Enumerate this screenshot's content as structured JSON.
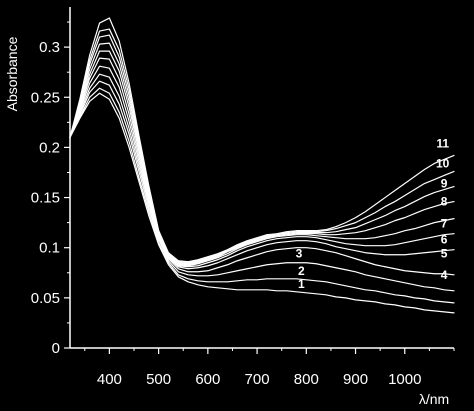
{
  "chart_data": {
    "type": "line",
    "title": "",
    "xlabel": "λ/nm",
    "ylabel": "Absorbance",
    "xlim": [
      320,
      1100
    ],
    "ylim": [
      0,
      0.34
    ],
    "x_ticks": [
      400,
      500,
      600,
      700,
      800,
      900,
      1000
    ],
    "x_tick_labels": [
      "400",
      "500",
      "600",
      "700",
      "800",
      "900",
      "1000"
    ],
    "y_ticks": [
      0,
      0.05,
      0.1,
      0.15,
      0.2,
      0.25,
      0.3
    ],
    "y_tick_labels": [
      "0",
      "0.05",
      "0.1",
      "0.15",
      "0.2",
      "0.25",
      "0.3"
    ],
    "grid": false,
    "legend": "none",
    "colors": {
      "background": "#000000",
      "axes": "#ffffff",
      "lines": "#ffffff"
    },
    "x": [
      320,
      340,
      360,
      380,
      400,
      420,
      440,
      460,
      480,
      500,
      520,
      540,
      560,
      580,
      600,
      620,
      640,
      660,
      680,
      700,
      720,
      740,
      760,
      780,
      800,
      820,
      840,
      860,
      880,
      900,
      920,
      940,
      960,
      980,
      1000,
      1020,
      1040,
      1060,
      1080,
      1100
    ],
    "series": [
      {
        "name": "1",
        "values": [
          0.21,
          0.229,
          0.246,
          0.254,
          0.248,
          0.229,
          0.2,
          0.166,
          0.132,
          0.103,
          0.083,
          0.071,
          0.066,
          0.063,
          0.061,
          0.06,
          0.059,
          0.058,
          0.058,
          0.058,
          0.058,
          0.057,
          0.057,
          0.056,
          0.055,
          0.054,
          0.053,
          0.051,
          0.05,
          0.048,
          0.047,
          0.046,
          0.044,
          0.043,
          0.041,
          0.04,
          0.038,
          0.037,
          0.036,
          0.035
        ],
        "label_x": 790,
        "label_y": 0.06
      },
      {
        "name": "2",
        "values": [
          0.21,
          0.23,
          0.25,
          0.259,
          0.254,
          0.235,
          0.206,
          0.17,
          0.136,
          0.105,
          0.085,
          0.073,
          0.069,
          0.067,
          0.066,
          0.066,
          0.066,
          0.067,
          0.068,
          0.068,
          0.069,
          0.069,
          0.069,
          0.069,
          0.068,
          0.067,
          0.066,
          0.064,
          0.062,
          0.06,
          0.058,
          0.057,
          0.055,
          0.053,
          0.052,
          0.05,
          0.049,
          0.047,
          0.046,
          0.045
        ],
        "label_x": 790,
        "label_y": 0.073
      },
      {
        "name": "3",
        "values": [
          0.21,
          0.232,
          0.255,
          0.266,
          0.262,
          0.243,
          0.213,
          0.176,
          0.14,
          0.108,
          0.087,
          0.076,
          0.073,
          0.072,
          0.072,
          0.073,
          0.075,
          0.077,
          0.079,
          0.081,
          0.083,
          0.084,
          0.085,
          0.085,
          0.085,
          0.084,
          0.082,
          0.08,
          0.078,
          0.076,
          0.073,
          0.071,
          0.069,
          0.067,
          0.065,
          0.063,
          0.061,
          0.06,
          0.058,
          0.057
        ],
        "label_x": 785,
        "label_y": 0.09
      },
      {
        "name": "4",
        "values": [
          0.21,
          0.234,
          0.259,
          0.273,
          0.27,
          0.251,
          0.219,
          0.181,
          0.144,
          0.11,
          0.089,
          0.079,
          0.076,
          0.076,
          0.077,
          0.08,
          0.083,
          0.087,
          0.09,
          0.093,
          0.096,
          0.098,
          0.099,
          0.1,
          0.1,
          0.099,
          0.097,
          0.095,
          0.092,
          0.089,
          0.086,
          0.083,
          0.081,
          0.079,
          0.077,
          0.076,
          0.075,
          0.074,
          0.074,
          0.073
        ],
        "label_x": 1080,
        "label_y": 0.069
      },
      {
        "name": "5",
        "values": [
          0.21,
          0.236,
          0.264,
          0.281,
          0.279,
          0.26,
          0.226,
          0.186,
          0.147,
          0.112,
          0.09,
          0.081,
          0.079,
          0.08,
          0.082,
          0.085,
          0.089,
          0.093,
          0.097,
          0.1,
          0.103,
          0.105,
          0.106,
          0.107,
          0.107,
          0.106,
          0.104,
          0.101,
          0.099,
          0.097,
          0.095,
          0.094,
          0.093,
          0.093,
          0.093,
          0.094,
          0.095,
          0.096,
          0.097,
          0.098
        ],
        "label_x": 1080,
        "label_y": 0.09
      },
      {
        "name": "6",
        "values": [
          0.21,
          0.238,
          0.269,
          0.289,
          0.288,
          0.268,
          0.233,
          0.191,
          0.15,
          0.113,
          0.091,
          0.082,
          0.081,
          0.082,
          0.085,
          0.088,
          0.092,
          0.097,
          0.101,
          0.104,
          0.107,
          0.109,
          0.11,
          0.111,
          0.111,
          0.11,
          0.108,
          0.106,
          0.104,
          0.103,
          0.102,
          0.102,
          0.102,
          0.103,
          0.105,
          0.107,
          0.109,
          0.111,
          0.113,
          0.114
        ],
        "label_x": 1080,
        "label_y": 0.104
      },
      {
        "name": "7",
        "values": [
          0.21,
          0.24,
          0.273,
          0.296,
          0.296,
          0.276,
          0.24,
          0.196,
          0.153,
          0.114,
          0.092,
          0.083,
          0.082,
          0.084,
          0.087,
          0.09,
          0.094,
          0.099,
          0.103,
          0.106,
          0.109,
          0.111,
          0.112,
          0.113,
          0.113,
          0.112,
          0.111,
          0.11,
          0.109,
          0.109,
          0.109,
          0.11,
          0.112,
          0.114,
          0.117,
          0.119,
          0.122,
          0.125,
          0.127,
          0.129
        ],
        "label_x": 1080,
        "label_y": 0.12
      },
      {
        "name": "8",
        "values": [
          0.21,
          0.242,
          0.278,
          0.303,
          0.304,
          0.283,
          0.246,
          0.2,
          0.156,
          0.115,
          0.093,
          0.084,
          0.083,
          0.085,
          0.088,
          0.091,
          0.096,
          0.1,
          0.104,
          0.107,
          0.11,
          0.112,
          0.113,
          0.114,
          0.114,
          0.114,
          0.113,
          0.113,
          0.114,
          0.115,
          0.117,
          0.12,
          0.123,
          0.127,
          0.13,
          0.134,
          0.138,
          0.141,
          0.144,
          0.146
        ],
        "label_x": 1080,
        "label_y": 0.142
      },
      {
        "name": "9",
        "values": [
          0.21,
          0.244,
          0.283,
          0.31,
          0.312,
          0.29,
          0.252,
          0.204,
          0.158,
          0.116,
          0.094,
          0.085,
          0.084,
          0.086,
          0.089,
          0.092,
          0.097,
          0.101,
          0.105,
          0.108,
          0.111,
          0.113,
          0.114,
          0.115,
          0.115,
          0.115,
          0.115,
          0.116,
          0.118,
          0.12,
          0.124,
          0.128,
          0.132,
          0.137,
          0.141,
          0.146,
          0.151,
          0.155,
          0.158,
          0.161
        ],
        "label_x": 1080,
        "label_y": 0.16
      },
      {
        "name": "10",
        "values": [
          0.21,
          0.246,
          0.287,
          0.316,
          0.318,
          0.297,
          0.258,
          0.208,
          0.16,
          0.117,
          0.094,
          0.086,
          0.085,
          0.087,
          0.09,
          0.093,
          0.097,
          0.102,
          0.106,
          0.109,
          0.112,
          0.113,
          0.115,
          0.116,
          0.116,
          0.116,
          0.117,
          0.119,
          0.122,
          0.125,
          0.13,
          0.135,
          0.141,
          0.146,
          0.152,
          0.158,
          0.164,
          0.168,
          0.172,
          0.176
        ],
        "label_x": 1077,
        "label_y": 0.18
      },
      {
        "name": "11",
        "values": [
          0.21,
          0.248,
          0.292,
          0.324,
          0.329,
          0.306,
          0.264,
          0.212,
          0.162,
          0.117,
          0.095,
          0.087,
          0.086,
          0.088,
          0.091,
          0.094,
          0.098,
          0.103,
          0.107,
          0.11,
          0.113,
          0.114,
          0.116,
          0.117,
          0.117,
          0.117,
          0.118,
          0.121,
          0.125,
          0.13,
          0.136,
          0.143,
          0.15,
          0.157,
          0.164,
          0.171,
          0.178,
          0.184,
          0.188,
          0.192
        ],
        "label_x": 1077,
        "label_y": 0.2
      }
    ]
  }
}
